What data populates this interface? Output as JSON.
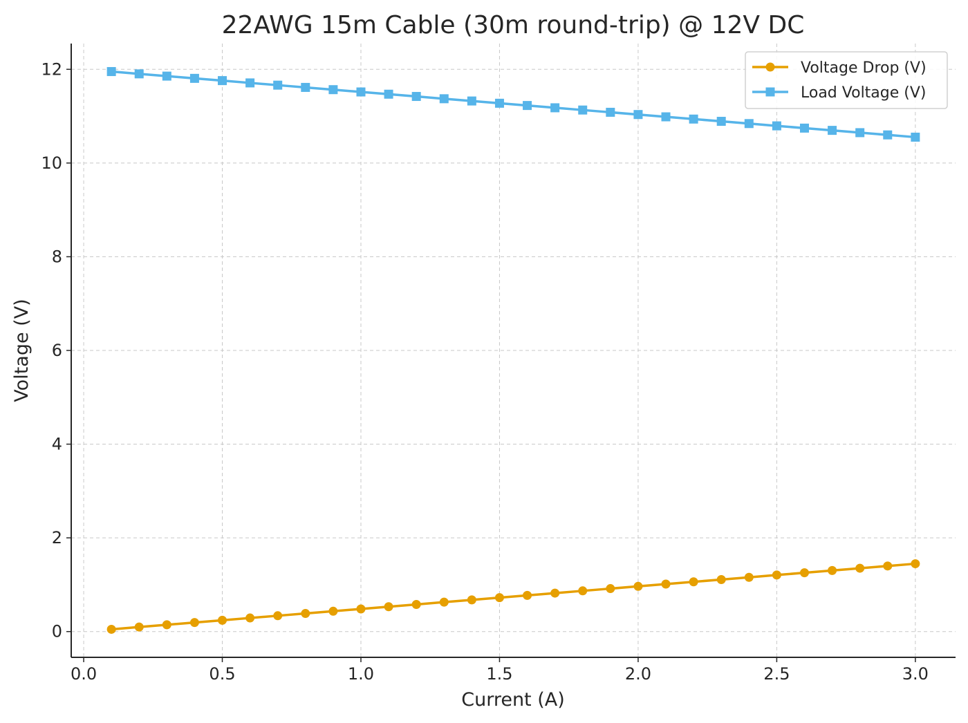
{
  "chart_data": {
    "type": "line",
    "title": "22AWG 15m Cable (30m round-trip) @ 12V DC",
    "xlabel": "Current (A)",
    "ylabel": "Voltage (V)",
    "xlim": [
      -0.045,
      3.145
    ],
    "ylim": [
      -0.55,
      12.55
    ],
    "xticks": [
      0.0,
      0.5,
      1.0,
      1.5,
      2.0,
      2.5,
      3.0
    ],
    "xtick_labels": [
      "0.0",
      "0.5",
      "1.0",
      "1.5",
      "2.0",
      "2.5",
      "3.0"
    ],
    "yticks": [
      0,
      2,
      4,
      6,
      8,
      10,
      12
    ],
    "ytick_labels": [
      "0",
      "2",
      "4",
      "6",
      "8",
      "10",
      "12"
    ],
    "grid": true,
    "legend_position": "top-right",
    "x": [
      0.1,
      0.2,
      0.3,
      0.4,
      0.5,
      0.6,
      0.7,
      0.8,
      0.9,
      1.0,
      1.1,
      1.2,
      1.3,
      1.4,
      1.5,
      1.6,
      1.7,
      1.8,
      1.9,
      2.0,
      2.1,
      2.2,
      2.3,
      2.4,
      2.5,
      2.6,
      2.7,
      2.8,
      2.9,
      3.0
    ],
    "series": [
      {
        "name": "Voltage Drop (V)",
        "color": "#E69F00",
        "marker": "circle",
        "values": [
          0.048,
          0.097,
          0.145,
          0.193,
          0.241,
          0.29,
          0.338,
          0.386,
          0.434,
          0.483,
          0.531,
          0.579,
          0.628,
          0.676,
          0.724,
          0.772,
          0.821,
          0.869,
          0.917,
          0.965,
          1.014,
          1.062,
          1.11,
          1.158,
          1.207,
          1.255,
          1.303,
          1.352,
          1.4,
          1.448
        ]
      },
      {
        "name": "Load Voltage (V)",
        "color": "#56B4E9",
        "marker": "square",
        "values": [
          11.952,
          11.903,
          11.855,
          11.807,
          11.759,
          11.71,
          11.662,
          11.614,
          11.566,
          11.517,
          11.469,
          11.421,
          11.372,
          11.324,
          11.276,
          11.228,
          11.179,
          11.131,
          11.083,
          11.035,
          10.986,
          10.938,
          10.89,
          10.842,
          10.793,
          10.745,
          10.697,
          10.648,
          10.6,
          10.552
        ]
      }
    ]
  }
}
